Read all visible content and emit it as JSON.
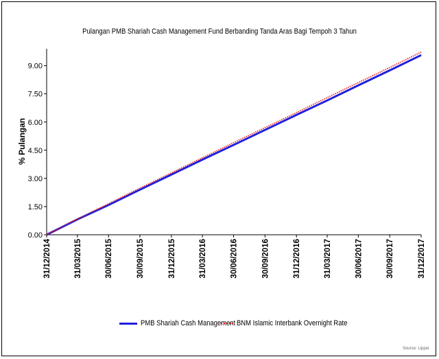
{
  "chart_data": {
    "type": "line",
    "title": "Pulangan PMB Shariah Cash Management Fund Berbanding Tanda Aras Bagi Tempoh 3 Tahun",
    "ylabel": "% Pulangan",
    "xlabel": "",
    "ylim": [
      0,
      9.9
    ],
    "yticks": [
      "0.00",
      "1.50",
      "3.00",
      "4.50",
      "6.00",
      "7.50",
      "9.00"
    ],
    "ytick_values": [
      0,
      1.5,
      3,
      4.5,
      6,
      7.5,
      9
    ],
    "xlim": [
      "2014-12-31",
      "2017-12-31"
    ],
    "xticks": [
      "31/12/2014",
      "31/03/2015",
      "30/06/2015",
      "30/09/2015",
      "31/12/2015",
      "31/03/2016",
      "30/06/2016",
      "30/09/2016",
      "31/12/2016",
      "31/03/2017",
      "30/06/2017",
      "30/09/2017",
      "31/12/2017"
    ],
    "grid": false,
    "legend_position": "bottom",
    "x": [
      "31/12/2014",
      "31/03/2015",
      "30/06/2015",
      "30/09/2015",
      "31/12/2015",
      "31/03/2016",
      "30/06/2016",
      "30/09/2016",
      "31/12/2016",
      "31/03/2017",
      "30/06/2017",
      "30/09/2017",
      "31/12/2017"
    ],
    "series": [
      {
        "name": "PMB Shariah Cash Management",
        "color": "#1f1fe0",
        "style": "solid",
        "values": [
          0.0,
          0.82,
          1.58,
          2.4,
          3.2,
          4.0,
          4.78,
          5.58,
          6.38,
          7.15,
          7.95,
          8.75,
          9.56
        ]
      },
      {
        "name": "BNM Islamic Interbank Overnight Rate",
        "color": "#e02020",
        "style": "dotted",
        "values": [
          0.0,
          0.84,
          1.65,
          2.48,
          3.29,
          4.1,
          4.9,
          5.7,
          6.5,
          7.3,
          8.1,
          8.9,
          9.72
        ]
      }
    ]
  },
  "source_text": "Source: Lipper"
}
